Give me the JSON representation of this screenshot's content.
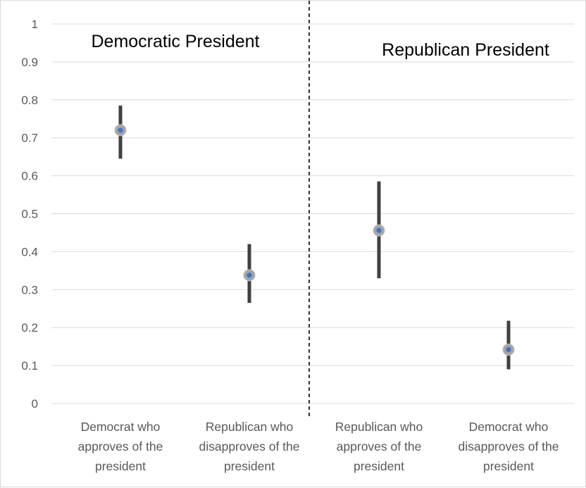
{
  "chart_data": {
    "type": "scatter",
    "title": "",
    "xlabel": "",
    "ylabel": "",
    "ylim": [
      0,
      1
    ],
    "yticks": [
      "0",
      "0.1",
      "0.2",
      "0.3",
      "0.4",
      "0.5",
      "0.6",
      "0.7",
      "0.8",
      "0.9",
      "1"
    ],
    "grid": true,
    "panels": [
      {
        "label": "Democratic President"
      },
      {
        "label": "Republican President"
      }
    ],
    "categories": [
      [
        "Democrat who",
        "approves of the",
        "president"
      ],
      [
        "Republican who",
        "disapproves of the",
        "president"
      ],
      [
        "Republican who",
        "approves of the",
        "president"
      ],
      [
        "Democrat who",
        "disapproves of the",
        "president"
      ]
    ],
    "points": [
      {
        "value": 0.72,
        "low": 0.645,
        "high": 0.785
      },
      {
        "value": 0.338,
        "low": 0.265,
        "high": 0.42
      },
      {
        "value": 0.456,
        "low": 0.33,
        "high": 0.585
      },
      {
        "value": 0.142,
        "low": 0.09,
        "high": 0.218
      }
    ],
    "colors": {
      "point": "#4472c4",
      "marker_ring": "#a5a5a5",
      "error_bar": "#404040",
      "grid": "#d9d9d9",
      "divider": "#000000"
    }
  }
}
